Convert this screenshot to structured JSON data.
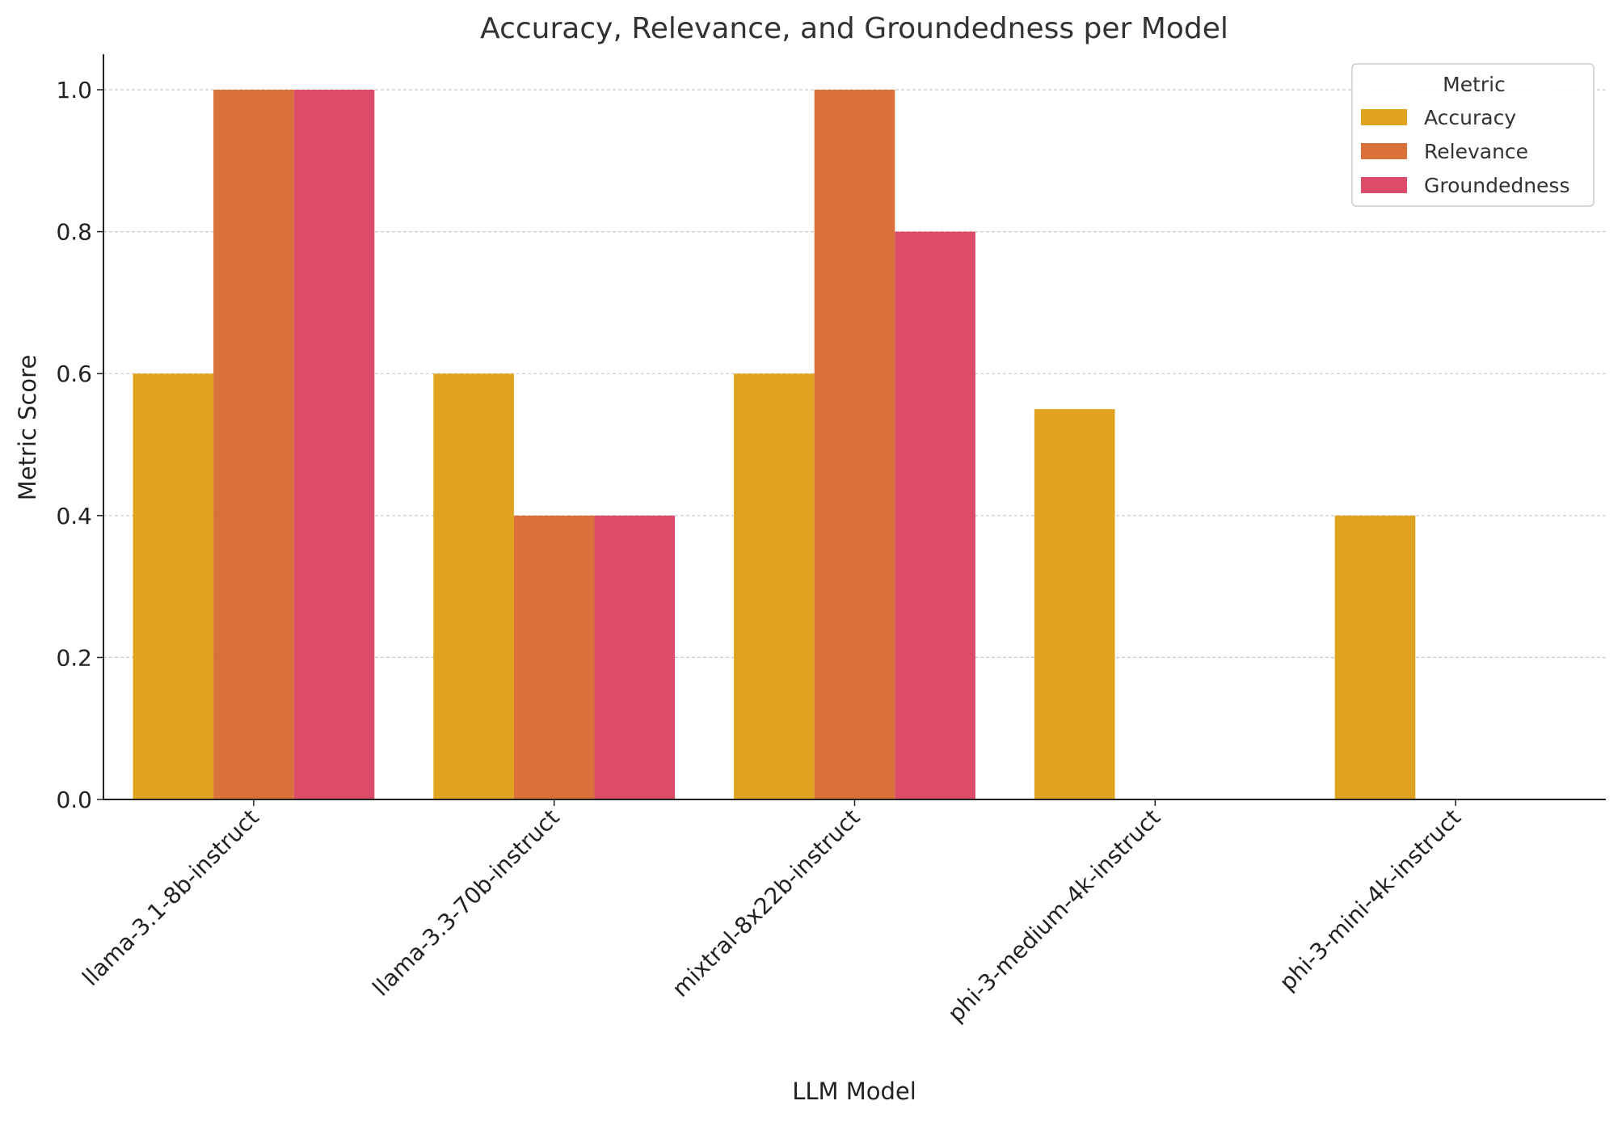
{
  "chart_data": {
    "type": "bar",
    "title": "Accuracy, Relevance, and Groundedness per Model",
    "xlabel": "LLM Model",
    "ylabel": "Metric Score",
    "ylim": [
      0,
      1.05
    ],
    "yticks": [
      "0.0",
      "0.2",
      "0.4",
      "0.6",
      "0.8",
      "1.0"
    ],
    "grid": "y, dashed",
    "legend": {
      "title": "Metric",
      "placement": "top-right"
    },
    "categories": [
      "llama-3.1-8b-instruct",
      "llama-3.3-70b-instruct",
      "mixtral-8x22b-instruct",
      "phi-3-medium-4k-instruct",
      "phi-3-mini-4k-instruct"
    ],
    "series": [
      {
        "name": "Accuracy",
        "color": "#DFA320",
        "values": [
          0.6,
          0.6,
          0.6,
          0.55,
          0.4
        ]
      },
      {
        "name": "Relevance",
        "color": "#DA713A",
        "values": [
          1.0,
          0.4,
          1.0,
          0.0,
          0.0
        ]
      },
      {
        "name": "Groundedness",
        "color": "#DC4B67",
        "values": [
          1.0,
          0.4,
          0.8,
          0.0,
          0.0
        ]
      }
    ]
  }
}
